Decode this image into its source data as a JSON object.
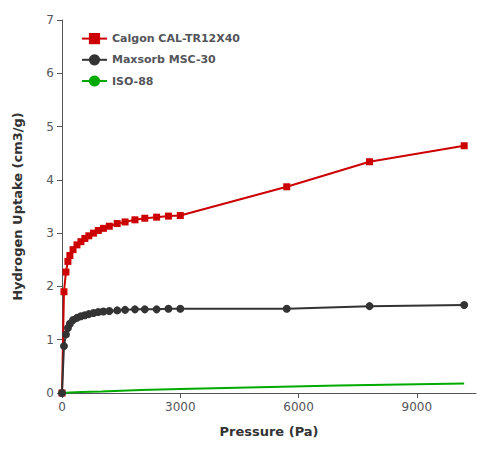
{
  "chart_data": {
    "type": "line",
    "xlabel": "Pressure (Pa)",
    "ylabel": "Hydrogen Uptake (cm3/g)",
    "xlim": [
      0,
      10500
    ],
    "ylim": [
      0,
      7
    ],
    "xticks": [
      0,
      3000,
      6000,
      9000
    ],
    "yticks": [
      0,
      1,
      2,
      3,
      4,
      5,
      6,
      7
    ],
    "grid": false,
    "legend": "upper left",
    "series": [
      {
        "name": "Calgon CAL-TR12X40",
        "color": "#cc0000",
        "marker": "square",
        "x": [
          0,
          50,
          100,
          150,
          200,
          280,
          380,
          480,
          580,
          680,
          800,
          920,
          1050,
          1200,
          1400,
          1600,
          1850,
          2100,
          2400,
          2700,
          3000,
          5700,
          7800,
          10200
        ],
        "values": [
          0,
          1.9,
          2.27,
          2.47,
          2.58,
          2.69,
          2.78,
          2.84,
          2.9,
          2.95,
          3.0,
          3.05,
          3.09,
          3.13,
          3.18,
          3.21,
          3.25,
          3.28,
          3.3,
          3.32,
          3.33,
          3.87,
          4.34,
          4.64
        ]
      },
      {
        "name": "Maxsorb MSC-30",
        "color": "#333333",
        "marker": "circle",
        "x": [
          0,
          50,
          100,
          150,
          200,
          280,
          380,
          480,
          580,
          680,
          800,
          920,
          1050,
          1200,
          1400,
          1600,
          1850,
          2100,
          2400,
          2700,
          3000,
          5700,
          7800,
          10200
        ],
        "values": [
          0,
          0.88,
          1.1,
          1.22,
          1.3,
          1.37,
          1.41,
          1.44,
          1.46,
          1.48,
          1.5,
          1.52,
          1.53,
          1.54,
          1.55,
          1.56,
          1.57,
          1.57,
          1.57,
          1.58,
          1.58,
          1.58,
          1.63,
          1.65
        ]
      },
      {
        "name": "ISO-88",
        "color": "#00aa00",
        "marker": "none",
        "x": [
          0,
          200,
          500,
          1000,
          2000,
          3000,
          5000,
          7000,
          10200
        ],
        "values": [
          0,
          0.01,
          0.02,
          0.03,
          0.055,
          0.075,
          0.11,
          0.14,
          0.18
        ]
      }
    ]
  }
}
